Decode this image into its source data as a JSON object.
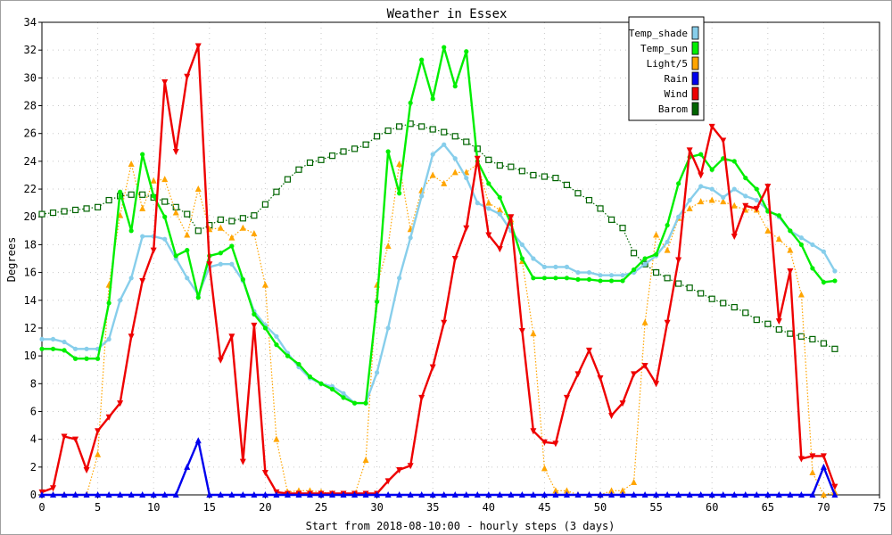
{
  "chart_data": {
    "type": "line",
    "title": "Weather in Essex",
    "xlabel": "Start from 2018-08-10:00 - hourly steps (3 days)",
    "ylabel": "Degrees",
    "xlim": [
      0,
      75
    ],
    "ylim": [
      0,
      34
    ],
    "xticks": [
      0,
      5,
      10,
      15,
      20,
      25,
      30,
      35,
      40,
      45,
      50,
      55,
      60,
      65,
      70,
      75
    ],
    "yticks": [
      0,
      2,
      4,
      6,
      8,
      10,
      12,
      14,
      16,
      18,
      20,
      22,
      24,
      26,
      28,
      30,
      32,
      34
    ],
    "grid": true,
    "legend_position": "top-right",
    "series": [
      {
        "name": "Temp_shade",
        "color": "#87ceeb",
        "marker": "circle",
        "line": "solid",
        "x": [
          0,
          1,
          2,
          3,
          4,
          5,
          6,
          7,
          8,
          9,
          10,
          11,
          12,
          13,
          14,
          15,
          16,
          17,
          18,
          19,
          20,
          21,
          22,
          23,
          24,
          25,
          26,
          27,
          28,
          29,
          30,
          31,
          32,
          33,
          34,
          35,
          36,
          37,
          38,
          39,
          40,
          41,
          42,
          43,
          44,
          45,
          46,
          47,
          48,
          49,
          50,
          51,
          52,
          53,
          54,
          55,
          56,
          57,
          58,
          59,
          60,
          61,
          62,
          63,
          64,
          65,
          66,
          67,
          68,
          69,
          70,
          71
        ],
        "values": [
          11.2,
          11.2,
          11.0,
          10.5,
          10.5,
          10.5,
          11.2,
          14.0,
          15.6,
          18.6,
          18.6,
          18.4,
          17.0,
          15.6,
          14.4,
          16.4,
          16.6,
          16.6,
          15.4,
          13.2,
          12.2,
          11.4,
          10.2,
          9.2,
          8.4,
          8.0,
          7.8,
          7.3,
          6.6,
          6.6,
          8.8,
          12.0,
          15.6,
          18.5,
          21.5,
          24.5,
          25.2,
          24.2,
          22.8,
          21.0,
          20.6,
          20.2,
          19.0,
          18.0,
          17.0,
          16.4,
          16.4,
          16.4,
          16.0,
          16.0,
          15.8,
          15.8,
          15.8,
          16.0,
          16.6,
          17.2,
          18.2,
          20.0,
          21.2,
          22.2,
          22.0,
          21.4,
          22.0,
          21.5,
          21.2,
          20.5,
          20.0,
          19.0,
          18.5,
          18.0,
          17.5,
          16.1
        ]
      },
      {
        "name": "Temp_sun",
        "color": "#00ee00",
        "marker": "circle",
        "line": "solid",
        "x": [
          0,
          1,
          2,
          3,
          4,
          5,
          6,
          7,
          8,
          9,
          10,
          11,
          12,
          13,
          14,
          15,
          16,
          17,
          18,
          19,
          20,
          21,
          22,
          23,
          24,
          25,
          26,
          27,
          28,
          29,
          30,
          31,
          32,
          33,
          34,
          35,
          36,
          37,
          38,
          39,
          40,
          41,
          42,
          43,
          44,
          45,
          46,
          47,
          48,
          49,
          50,
          51,
          52,
          53,
          54,
          55,
          56,
          57,
          58,
          59,
          60,
          61,
          62,
          63,
          64,
          65,
          66,
          67,
          68,
          69,
          70,
          71
        ],
        "values": [
          10.5,
          10.5,
          10.4,
          9.8,
          9.8,
          9.8,
          13.8,
          21.8,
          19.0,
          24.5,
          21.5,
          20.0,
          17.2,
          17.6,
          14.2,
          17.2,
          17.4,
          17.9,
          15.5,
          13.0,
          12.0,
          10.8,
          10.0,
          9.4,
          8.5,
          8.0,
          7.6,
          7.0,
          6.6,
          6.6,
          13.9,
          24.7,
          21.7,
          28.2,
          31.3,
          28.5,
          32.2,
          29.4,
          31.9,
          24.0,
          22.4,
          21.4,
          19.5,
          17.0,
          15.6,
          15.6,
          15.6,
          15.6,
          15.5,
          15.5,
          15.4,
          15.4,
          15.4,
          16.2,
          17.0,
          17.3,
          19.4,
          22.4,
          24.3,
          24.5,
          23.4,
          24.2,
          24.0,
          22.8,
          22.0,
          20.4,
          20.1,
          19.0,
          18.0,
          16.3,
          15.3,
          15.4
        ]
      },
      {
        "name": "Light/5",
        "color": "#ffa500",
        "marker": "triangle-up",
        "line": "dotted",
        "x": [
          0,
          1,
          2,
          3,
          4,
          5,
          6,
          7,
          8,
          9,
          10,
          11,
          12,
          13,
          14,
          15,
          16,
          17,
          18,
          19,
          20,
          21,
          22,
          23,
          24,
          25,
          26,
          27,
          28,
          29,
          30,
          31,
          32,
          33,
          34,
          35,
          36,
          37,
          38,
          39,
          40,
          41,
          42,
          43,
          44,
          45,
          46,
          47,
          48,
          49,
          50,
          51,
          52,
          53,
          54,
          55,
          56,
          57,
          58,
          59,
          60,
          61,
          62,
          63,
          64,
          65,
          66,
          67,
          68,
          69,
          70,
          71
        ],
        "values": [
          0,
          0,
          0,
          0,
          0,
          2.9,
          15.1,
          20.1,
          23.8,
          20.6,
          22.6,
          22.7,
          20.3,
          18.7,
          22.0,
          19.1,
          19.2,
          18.5,
          19.2,
          18.8,
          15.1,
          4.0,
          0.2,
          0.3,
          0.3,
          0.2,
          0.1,
          0,
          0,
          2.5,
          15.1,
          17.9,
          23.8,
          19.1,
          21.9,
          23.0,
          22.4,
          23.2,
          23.2,
          23.8,
          21.0,
          20.5,
          19.8,
          16.8,
          11.6,
          1.9,
          0.3,
          0.3,
          0,
          0,
          0,
          0.3,
          0.3,
          0.9,
          12.4,
          18.7,
          17.6,
          19.9,
          20.6,
          21.1,
          21.2,
          21.1,
          20.8,
          20.5,
          20.5,
          19.0,
          18.4,
          17.6,
          14.4,
          1.6,
          0,
          0.2
        ]
      },
      {
        "name": "Rain",
        "color": "#0000ee",
        "marker": "triangle-up",
        "line": "solid",
        "x": [
          0,
          1,
          2,
          3,
          4,
          5,
          6,
          7,
          8,
          9,
          10,
          11,
          12,
          13,
          14,
          15,
          16,
          17,
          18,
          19,
          20,
          21,
          22,
          23,
          24,
          25,
          26,
          27,
          28,
          29,
          30,
          31,
          32,
          33,
          34,
          35,
          36,
          37,
          38,
          39,
          40,
          41,
          42,
          43,
          44,
          45,
          46,
          47,
          48,
          49,
          50,
          51,
          52,
          53,
          54,
          55,
          56,
          57,
          58,
          59,
          60,
          61,
          62,
          63,
          64,
          65,
          66,
          67,
          68,
          69,
          70,
          71
        ],
        "values": [
          0,
          0,
          0,
          0,
          0,
          0,
          0,
          0,
          0,
          0,
          0,
          0,
          0,
          2.0,
          3.9,
          0,
          0,
          0,
          0,
          0,
          0,
          0,
          0,
          0,
          0,
          0,
          0,
          0,
          0,
          0,
          0,
          0,
          0,
          0,
          0,
          0,
          0,
          0,
          0,
          0,
          0,
          0,
          0,
          0,
          0,
          0,
          0,
          0,
          0,
          0,
          0,
          0,
          0,
          0,
          0,
          0,
          0,
          0,
          0,
          0,
          0,
          0,
          0,
          0,
          0,
          0,
          0,
          0,
          0,
          0,
          2.0,
          0
        ]
      },
      {
        "name": "Wind",
        "color": "#ee0000",
        "marker": "triangle-down",
        "line": "solid",
        "x": [
          0,
          1,
          2,
          3,
          4,
          5,
          6,
          7,
          8,
          9,
          10,
          11,
          12,
          13,
          14,
          15,
          16,
          17,
          18,
          19,
          20,
          21,
          22,
          23,
          24,
          25,
          26,
          27,
          28,
          29,
          30,
          31,
          32,
          33,
          34,
          35,
          36,
          37,
          38,
          39,
          40,
          41,
          42,
          43,
          44,
          45,
          46,
          47,
          48,
          49,
          50,
          51,
          52,
          53,
          54,
          55,
          56,
          57,
          58,
          59,
          60,
          61,
          62,
          63,
          64,
          65,
          66,
          67,
          68,
          69,
          70,
          71
        ],
        "values": [
          0.2,
          0.5,
          4.2,
          4.0,
          1.8,
          4.6,
          5.6,
          6.6,
          11.4,
          15.4,
          17.6,
          29.7,
          24.7,
          30.1,
          32.3,
          16.6,
          9.7,
          11.4,
          2.4,
          12.2,
          1.6,
          0.2,
          0.1,
          0.1,
          0.1,
          0.1,
          0.1,
          0.1,
          0.1,
          0.1,
          0.1,
          1.0,
          1.8,
          2.1,
          7.0,
          9.2,
          12.4,
          17.0,
          19.2,
          24.2,
          18.7,
          17.7,
          20.0,
          11.8,
          4.6,
          3.8,
          3.7,
          7.0,
          8.7,
          10.4,
          8.4,
          5.7,
          6.6,
          8.7,
          9.3,
          8.0,
          12.4,
          16.9,
          24.8,
          23.0,
          26.5,
          25.5,
          18.6,
          20.8,
          20.6,
          22.2,
          12.5,
          16.1,
          2.6,
          2.8,
          2.8,
          0.6
        ]
      },
      {
        "name": "Barom",
        "color": "#006400",
        "marker": "square-open",
        "line": "dotted",
        "x": [
          0,
          1,
          2,
          3,
          4,
          5,
          6,
          7,
          8,
          9,
          10,
          11,
          12,
          13,
          14,
          15,
          16,
          17,
          18,
          19,
          20,
          21,
          22,
          23,
          24,
          25,
          26,
          27,
          28,
          29,
          30,
          31,
          32,
          33,
          34,
          35,
          36,
          37,
          38,
          39,
          40,
          41,
          42,
          43,
          44,
          45,
          46,
          47,
          48,
          49,
          50,
          51,
          52,
          53,
          54,
          55,
          56,
          57,
          58,
          59,
          60,
          61,
          62,
          63,
          64,
          65,
          66,
          67,
          68,
          69,
          70,
          71
        ],
        "values": [
          20.2,
          20.3,
          20.4,
          20.5,
          20.6,
          20.7,
          21.2,
          21.5,
          21.6,
          21.6,
          21.4,
          21.1,
          20.7,
          20.2,
          19.0,
          19.4,
          19.8,
          19.7,
          19.9,
          20.1,
          20.9,
          21.8,
          22.7,
          23.4,
          23.9,
          24.1,
          24.4,
          24.7,
          24.9,
          25.2,
          25.8,
          26.2,
          26.5,
          26.7,
          26.5,
          26.3,
          26.1,
          25.8,
          25.4,
          24.9,
          24.1,
          23.7,
          23.6,
          23.3,
          23.0,
          22.9,
          22.8,
          22.3,
          21.7,
          21.2,
          20.6,
          19.8,
          19.2,
          17.4,
          16.6,
          16.0,
          15.6,
          15.2,
          14.9,
          14.5,
          14.1,
          13.8,
          13.5,
          13.1,
          12.6,
          12.3,
          11.9,
          11.6,
          11.4,
          11.2,
          10.9,
          10.5
        ]
      }
    ]
  }
}
